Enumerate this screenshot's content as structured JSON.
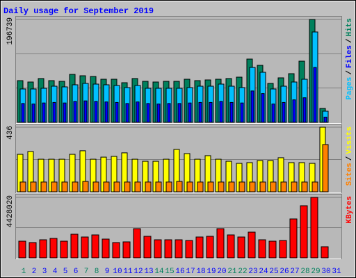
{
  "chart_data": {
    "type": "bar",
    "title": "Daily usage for September 2019",
    "legend_separator": "/",
    "categories": [
      "1",
      "2",
      "3",
      "4",
      "5",
      "6",
      "7",
      "8",
      "9",
      "10",
      "11",
      "12",
      "13",
      "14",
      "15",
      "16",
      "17",
      "18",
      "19",
      "20",
      "21",
      "22",
      "23",
      "24",
      "25",
      "26",
      "27",
      "28",
      "29",
      "30",
      "31"
    ],
    "category_colors": [
      "#00805c",
      "#0000ff",
      "#0000ff",
      "#0000ff",
      "#0000ff",
      "#0000ff",
      "#00805c",
      "#00805c",
      "#0000ff",
      "#0000ff",
      "#0000ff",
      "#0000ff",
      "#0000ff",
      "#00805c",
      "#00805c",
      "#0000ff",
      "#0000ff",
      "#0000ff",
      "#0000ff",
      "#0000ff",
      "#00805c",
      "#00805c",
      "#0000ff",
      "#0000ff",
      "#0000ff",
      "#0000ff",
      "#0000ff",
      "#00805c",
      "#00805c",
      "#0000ff",
      "#0000ff"
    ],
    "panels": [
      {
        "ylim": [
          0,
          196739
        ],
        "yticks": [
          196739
        ],
        "grid_divisions": 3,
        "series": [
          {
            "name": "Hits",
            "color": "#00805c",
            "values": [
              79760,
              77100,
              83750,
              79760,
              78430,
              91720,
              89060,
              87730,
              82420,
              82420,
              75770,
              83750,
              78430,
              77100,
              78430,
              78430,
              82420,
              79760,
              81090,
              82420,
              83750,
              86410,
              120970,
              109000,
              74440,
              85080,
              93050,
              116980,
              196739,
              26590,
              null
            ]
          },
          {
            "name": "Files",
            "color": "#0000ff",
            "values": [
              36000,
              35000,
              37000,
              38000,
              37000,
              40000,
              41000,
              40000,
              39000,
              38000,
              36000,
              39000,
              36000,
              35000,
              36000,
              36000,
              37000,
              38000,
              38000,
              40000,
              38000,
              37000,
              60000,
              55000,
              35000,
              38000,
              43000,
              47000,
              105000,
              10000,
              null
            ]
          },
          {
            "name": "Pages",
            "color": "#00c0ff",
            "values": [
              63810,
              63810,
              65140,
              69120,
              67800,
              71780,
              74440,
              73110,
              71780,
              70450,
              66470,
              70450,
              65140,
              65140,
              65140,
              65140,
              66470,
              69120,
              69120,
              73110,
              69120,
              66470,
              105020,
              95710,
              63810,
              69120,
              77100,
              82420,
              172810,
              21270,
              null
            ]
          }
        ]
      },
      {
        "ylim": [
          0,
          436
        ],
        "yticks": [
          436
        ],
        "grid_divisions": 2,
        "series": [
          {
            "name": "Visits",
            "color": "#ffff00",
            "values": [
              253,
              272,
              220,
              220,
              220,
              253,
              277,
              220,
              234,
              239,
              263,
              220,
              206,
              206,
              220,
              286,
              258,
              220,
              244,
              220,
              206,
              192,
              197,
              211,
              211,
              230,
              197,
              197,
              192,
              436,
              null
            ]
          },
          {
            "name": "Sites",
            "color": "#ff8000",
            "values": [
              66,
              66,
              66,
              66,
              66,
              66,
              70,
              66,
              66,
              66,
              66,
              66,
              66,
              66,
              66,
              70,
              66,
              66,
              66,
              66,
              66,
              66,
              66,
              66,
              66,
              66,
              66,
              66,
              66,
              319,
              null
            ]
          }
        ]
      },
      {
        "ylim": [
          0,
          4428020
        ],
        "yticks": [
          4428020
        ],
        "grid_divisions": 2,
        "series": [
          {
            "name": "KBytes",
            "color": "#ff0000",
            "values": [
              1221500,
              1119700,
              1323300,
              1425100,
              1221500,
              1730500,
              1526900,
              1679600,
              1374200,
              1119700,
              1170600,
              2137700,
              1577800,
              1323300,
              1323300,
              1323300,
              1272400,
              1526900,
              1577800,
              2137700,
              1679600,
              1526900,
              1883200,
              1323300,
              1221500,
              1272400,
              2850200,
              3817300,
              4428020,
              814400,
              null
            ]
          }
        ]
      }
    ]
  }
}
